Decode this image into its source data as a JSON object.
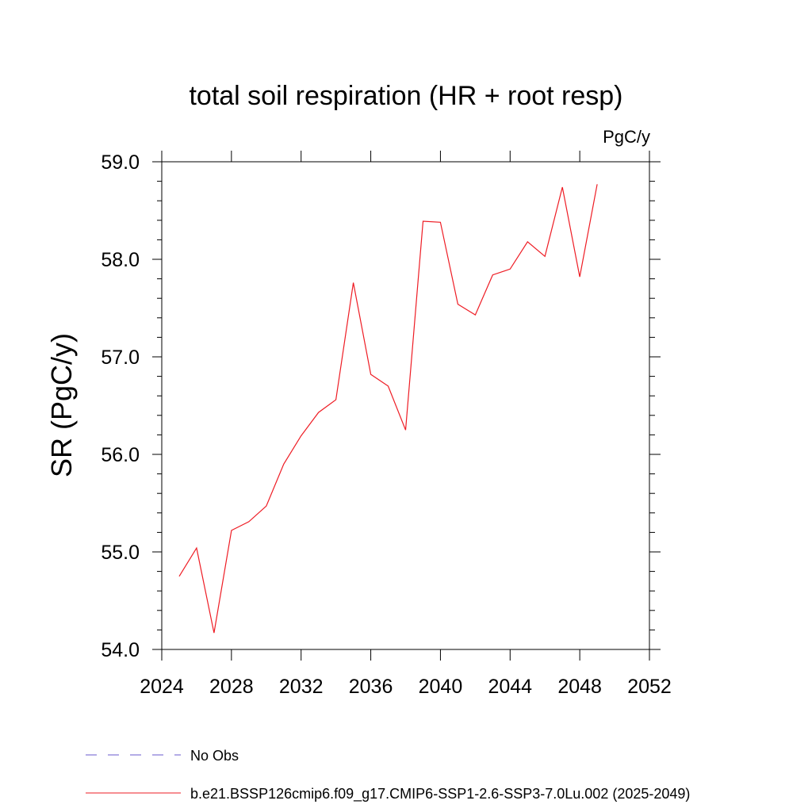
{
  "chart_data": {
    "type": "line",
    "title": "total soil respiration (HR + root resp)",
    "units": "PgC/y",
    "ylabel": "SR  (PgC/y)",
    "xlabel": "",
    "xlim": [
      2024,
      2052
    ],
    "ylim": [
      54.0,
      59.0
    ],
    "x_ticks": [
      "2024",
      "2028",
      "2032",
      "2036",
      "2040",
      "2044",
      "2048",
      "2052"
    ],
    "y_ticks": [
      "54.0",
      "55.0",
      "56.0",
      "57.0",
      "58.0",
      "59.0"
    ],
    "series": [
      {
        "name": "b.e21.BSSP126cmip6.f09_g17.CMIP6-SSP1-2.6-SSP3-7.0Lu.002 (2025-2049)",
        "color": "#ee1c24",
        "x": [
          2025,
          2026,
          2027,
          2028,
          2029,
          2030,
          2031,
          2032,
          2033,
          2034,
          2035,
          2036,
          2037,
          2038,
          2039,
          2040,
          2041,
          2042,
          2043,
          2044,
          2045,
          2046,
          2047,
          2048,
          2049
        ],
        "values": [
          54.75,
          55.04,
          54.17,
          55.22,
          55.31,
          55.47,
          55.9,
          56.19,
          56.43,
          56.56,
          57.76,
          56.82,
          56.7,
          56.25,
          58.39,
          58.38,
          57.54,
          57.43,
          57.84,
          57.9,
          58.18,
          58.03,
          58.74,
          57.82,
          58.77
        ]
      }
    ],
    "legend": [
      {
        "label": "No Obs",
        "color": "#6a5acd",
        "style": "dashed"
      },
      {
        "label": "b.e21.BSSP126cmip6.f09_g17.CMIP6-SSP1-2.6-SSP3-7.0Lu.002 (2025-2049)",
        "color": "#ee1c24",
        "style": "solid"
      }
    ]
  }
}
